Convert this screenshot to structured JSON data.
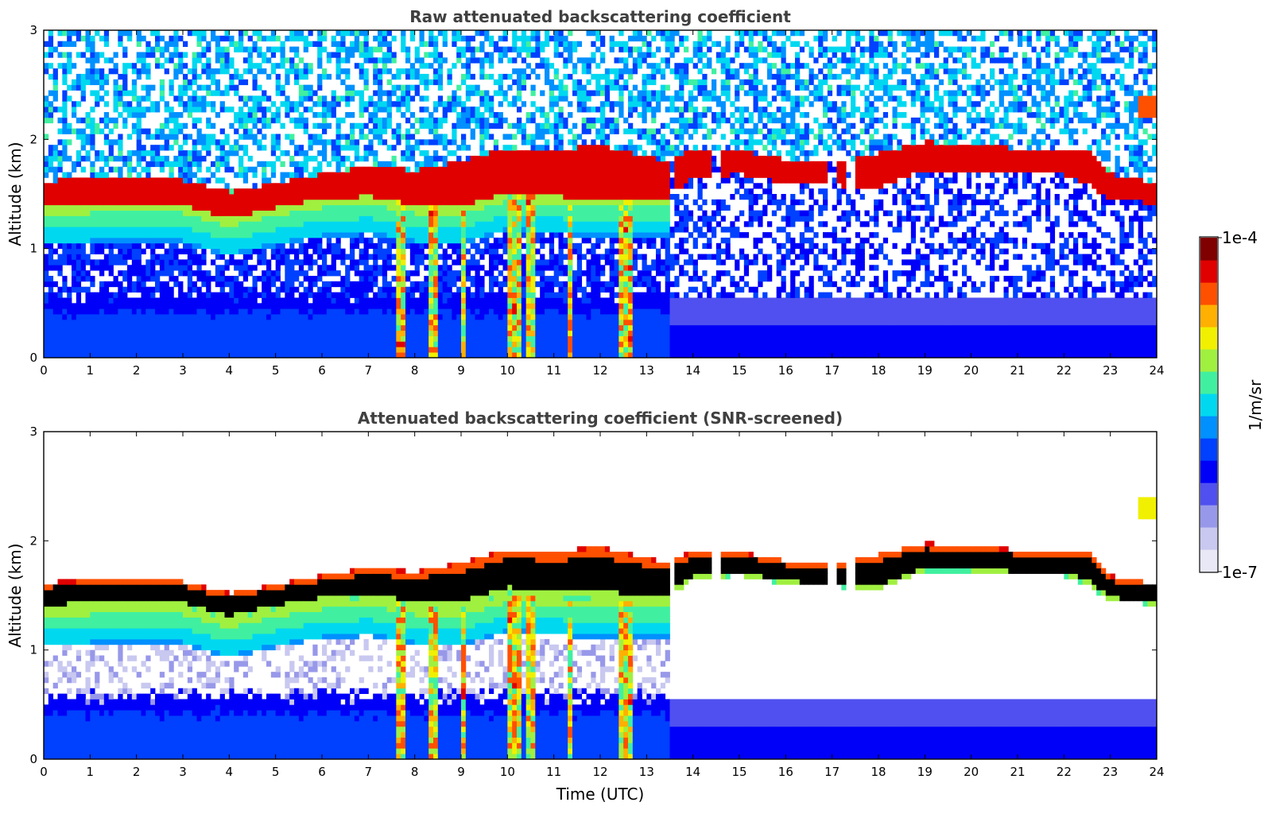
{
  "chart_data": [
    {
      "type": "heatmap",
      "title": "Raw attenuated backscattering coefficient",
      "xlabel": "",
      "ylabel": "Altitude (km)",
      "xlim": [
        0,
        24
      ],
      "ylim": [
        0,
        3
      ],
      "x_ticks": [
        "0",
        "1",
        "2",
        "3",
        "4",
        "5",
        "6",
        "7",
        "8",
        "9",
        "10",
        "11",
        "12",
        "13",
        "14",
        "15",
        "16",
        "17",
        "18",
        "19",
        "20",
        "21",
        "22",
        "23",
        "24"
      ],
      "y_ticks": [
        "0",
        "1",
        "2",
        "3"
      ],
      "noise_level": "high",
      "cloud_layer": {
        "time": [
          0,
          2,
          3,
          4,
          5,
          6,
          7,
          8,
          9,
          10,
          11,
          12,
          13.4,
          14,
          15,
          16,
          17,
          18,
          19,
          20,
          21,
          22,
          22.5,
          23,
          23.8
        ],
        "base_km": [
          1.38,
          1.42,
          1.4,
          1.28,
          1.38,
          1.45,
          1.48,
          1.4,
          1.38,
          1.52,
          1.48,
          1.46,
          1.45,
          1.65,
          1.68,
          1.6,
          1.58,
          1.55,
          1.72,
          1.72,
          1.68,
          1.68,
          1.6,
          1.45,
          1.42
        ],
        "top_km": [
          1.62,
          1.65,
          1.63,
          1.52,
          1.6,
          1.68,
          1.75,
          1.72,
          1.8,
          1.92,
          1.9,
          1.95,
          1.8,
          1.9,
          1.9,
          1.82,
          1.78,
          1.88,
          1.98,
          1.95,
          1.92,
          1.88,
          1.92,
          1.68,
          1.62
        ]
      },
      "cloud_gaps_utc": [
        [
          13.5,
          13.6
        ],
        [
          14.4,
          14.6
        ],
        [
          16.95,
          17.15
        ],
        [
          17.35,
          17.5
        ]
      ],
      "isolated_feature": {
        "time": 23.85,
        "altitude_km": 2.3
      },
      "precipitation_utc": [
        [
          7.6,
          7.8
        ],
        [
          8.3,
          8.5
        ],
        [
          9.0,
          9.1
        ],
        [
          10.0,
          10.3
        ],
        [
          10.45,
          10.6
        ],
        [
          11.3,
          11.4
        ],
        [
          12.4,
          12.7
        ]
      ]
    },
    {
      "type": "heatmap",
      "title": "Attenuated backscattering coefficient (SNR-screened)",
      "xlabel": "Time (UTC)",
      "ylabel": "Altitude (km)",
      "xlim": [
        0,
        24
      ],
      "ylim": [
        0,
        3
      ],
      "x_ticks": [
        "0",
        "1",
        "2",
        "3",
        "4",
        "5",
        "6",
        "7",
        "8",
        "9",
        "10",
        "11",
        "12",
        "13",
        "14",
        "15",
        "16",
        "17",
        "18",
        "19",
        "20",
        "21",
        "22",
        "23",
        "24"
      ],
      "y_ticks": [
        "0",
        "1",
        "2",
        "3"
      ],
      "noise_level": "screened",
      "saturated_core_color": "#000000"
    }
  ],
  "colorbar": {
    "label": "1/m/sr",
    "max_label": "1e-4",
    "min_label": "1e-7",
    "colormap": "jet",
    "colors": [
      "#e8e8f6",
      "#c8c8f0",
      "#9898ea",
      "#5050f0",
      "#0000f8",
      "#0040ff",
      "#0090ff",
      "#00d8f0",
      "#40f0a0",
      "#a0f040",
      "#f0f000",
      "#ffb000",
      "#ff5000",
      "#e00000",
      "#800000"
    ]
  }
}
